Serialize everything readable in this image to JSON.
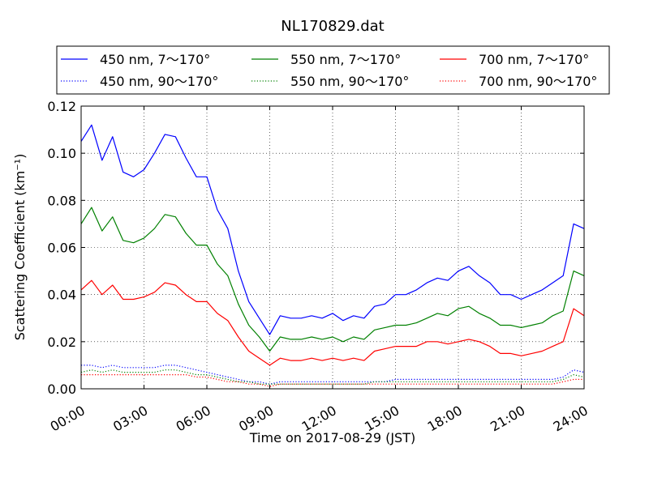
{
  "chart_data": {
    "type": "line",
    "title": "NL170829.dat",
    "xlabel": "Time on 2017-08-29 (JST)",
    "ylabel": "Scattering Coefficient (km⁻¹)",
    "xlim": [
      0,
      24
    ],
    "ylim": [
      0,
      0.12
    ],
    "x_ticks": [
      0,
      3,
      6,
      9,
      12,
      15,
      18,
      21,
      24
    ],
    "x_tick_labels": [
      "00:00",
      "03:00",
      "06:00",
      "09:00",
      "12:00",
      "15:00",
      "18:00",
      "21:00",
      "24:00"
    ],
    "y_ticks": [
      0,
      0.02,
      0.04,
      0.06,
      0.08,
      0.1,
      0.12
    ],
    "y_tick_labels": [
      "0.00",
      "0.02",
      "0.04",
      "0.06",
      "0.08",
      "0.10",
      "0.12"
    ],
    "grid": true,
    "legend_position": "top",
    "x": [
      0,
      0.5,
      1,
      1.5,
      2,
      2.5,
      3,
      3.5,
      4,
      4.5,
      5,
      5.5,
      6,
      6.5,
      7,
      7.5,
      8,
      8.5,
      9,
      9.5,
      10,
      10.5,
      11,
      11.5,
      12,
      12.5,
      13,
      13.5,
      14,
      14.5,
      15,
      15.5,
      16,
      16.5,
      17,
      17.5,
      18,
      18.5,
      19,
      19.5,
      20,
      20.5,
      21,
      21.5,
      22,
      22.5,
      23,
      23.5,
      24
    ],
    "series": [
      {
        "name": "450 nm, 7～170°",
        "color": "#0000ff",
        "style": "solid",
        "values": [
          0.105,
          0.112,
          0.097,
          0.107,
          0.092,
          0.09,
          0.093,
          0.1,
          0.108,
          0.107,
          0.098,
          0.09,
          0.09,
          0.076,
          0.068,
          0.05,
          0.037,
          0.03,
          0.023,
          0.031,
          0.03,
          0.03,
          0.031,
          0.03,
          0.032,
          0.029,
          0.031,
          0.03,
          0.035,
          0.036,
          0.04,
          0.04,
          0.042,
          0.045,
          0.047,
          0.046,
          0.05,
          0.052,
          0.048,
          0.045,
          0.04,
          0.04,
          0.038,
          0.04,
          0.042,
          0.045,
          0.048,
          0.07,
          0.068
        ]
      },
      {
        "name": "450 nm, 90～170°",
        "color": "#0000ff",
        "style": "dotted",
        "values": [
          0.01,
          0.01,
          0.009,
          0.01,
          0.009,
          0.009,
          0.009,
          0.009,
          0.01,
          0.01,
          0.009,
          0.008,
          0.007,
          0.006,
          0.005,
          0.004,
          0.003,
          0.003,
          0.002,
          0.003,
          0.003,
          0.003,
          0.003,
          0.003,
          0.003,
          0.003,
          0.003,
          0.003,
          0.003,
          0.003,
          0.004,
          0.004,
          0.004,
          0.004,
          0.004,
          0.004,
          0.004,
          0.004,
          0.004,
          0.004,
          0.004,
          0.004,
          0.004,
          0.004,
          0.004,
          0.004,
          0.005,
          0.008,
          0.007
        ]
      },
      {
        "name": "550 nm, 7～170°",
        "color": "#008000",
        "style": "solid",
        "values": [
          0.07,
          0.077,
          0.067,
          0.073,
          0.063,
          0.062,
          0.064,
          0.068,
          0.074,
          0.073,
          0.066,
          0.061,
          0.061,
          0.053,
          0.048,
          0.036,
          0.027,
          0.022,
          0.016,
          0.022,
          0.021,
          0.021,
          0.022,
          0.021,
          0.022,
          0.02,
          0.022,
          0.021,
          0.025,
          0.026,
          0.027,
          0.027,
          0.028,
          0.03,
          0.032,
          0.031,
          0.034,
          0.035,
          0.032,
          0.03,
          0.027,
          0.027,
          0.026,
          0.027,
          0.028,
          0.031,
          0.033,
          0.05,
          0.048
        ]
      },
      {
        "name": "550 nm, 90～170°",
        "color": "#008000",
        "style": "dotted",
        "values": [
          0.007,
          0.008,
          0.007,
          0.008,
          0.007,
          0.007,
          0.007,
          0.007,
          0.008,
          0.008,
          0.007,
          0.006,
          0.006,
          0.005,
          0.004,
          0.003,
          0.003,
          0.002,
          0.002,
          0.002,
          0.002,
          0.002,
          0.002,
          0.002,
          0.002,
          0.002,
          0.002,
          0.002,
          0.003,
          0.003,
          0.003,
          0.003,
          0.003,
          0.003,
          0.003,
          0.003,
          0.003,
          0.003,
          0.003,
          0.003,
          0.003,
          0.003,
          0.003,
          0.003,
          0.003,
          0.003,
          0.004,
          0.006,
          0.005
        ]
      },
      {
        "name": "700 nm, 7～170°",
        "color": "#ff0000",
        "style": "solid",
        "values": [
          0.042,
          0.046,
          0.04,
          0.044,
          0.038,
          0.038,
          0.039,
          0.041,
          0.045,
          0.044,
          0.04,
          0.037,
          0.037,
          0.032,
          0.029,
          0.022,
          0.016,
          0.013,
          0.01,
          0.013,
          0.012,
          0.012,
          0.013,
          0.012,
          0.013,
          0.012,
          0.013,
          0.012,
          0.016,
          0.017,
          0.018,
          0.018,
          0.018,
          0.02,
          0.02,
          0.019,
          0.02,
          0.021,
          0.02,
          0.018,
          0.015,
          0.015,
          0.014,
          0.015,
          0.016,
          0.018,
          0.02,
          0.034,
          0.031
        ]
      },
      {
        "name": "700 nm, 90～170°",
        "color": "#ff0000",
        "style": "dotted",
        "values": [
          0.006,
          0.006,
          0.006,
          0.006,
          0.006,
          0.006,
          0.006,
          0.006,
          0.006,
          0.006,
          0.006,
          0.005,
          0.005,
          0.004,
          0.003,
          0.003,
          0.002,
          0.002,
          0.001,
          0.002,
          0.002,
          0.002,
          0.002,
          0.002,
          0.002,
          0.002,
          0.002,
          0.002,
          0.002,
          0.002,
          0.002,
          0.002,
          0.002,
          0.002,
          0.002,
          0.002,
          0.002,
          0.002,
          0.002,
          0.002,
          0.002,
          0.002,
          0.002,
          0.002,
          0.002,
          0.002,
          0.003,
          0.004,
          0.004
        ]
      }
    ]
  }
}
